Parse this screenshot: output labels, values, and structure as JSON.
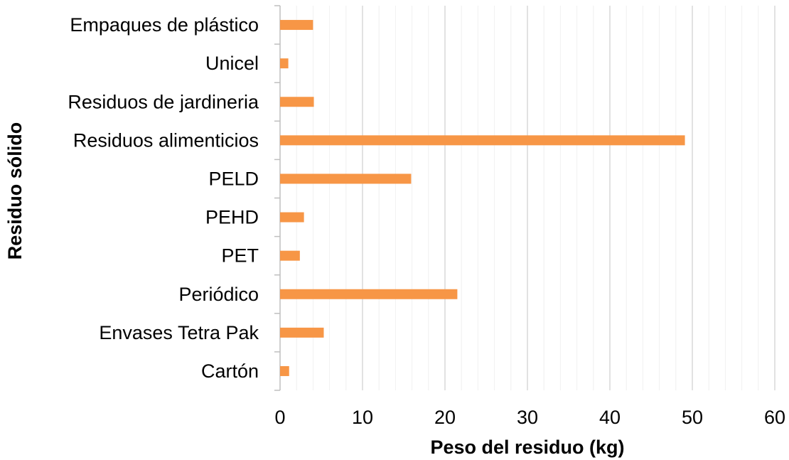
{
  "chart_data": {
    "type": "bar",
    "orientation": "horizontal",
    "title": "",
    "xlabel": "Peso del residuo (kg)",
    "ylabel": "Residuo sólido",
    "xlim": [
      0,
      60
    ],
    "major_tick_step": 10,
    "minor_tick_step": 2,
    "xticks": [
      "0",
      "10",
      "20",
      "30",
      "40",
      "50",
      "60"
    ],
    "grid": true,
    "legend": "none",
    "bar_color": "#f79646",
    "categories": [
      "Cartón",
      "Envases Tetra Pak",
      "Periódico",
      "PET",
      "PEHD",
      "PELD",
      "Residuos alimenticios",
      "Residuos de jardineria",
      "Unicel",
      "Empaques de plástico"
    ],
    "values": [
      1.1,
      5.3,
      21.5,
      2.4,
      2.9,
      15.9,
      49.1,
      4.1,
      1.0,
      4.0
    ]
  }
}
